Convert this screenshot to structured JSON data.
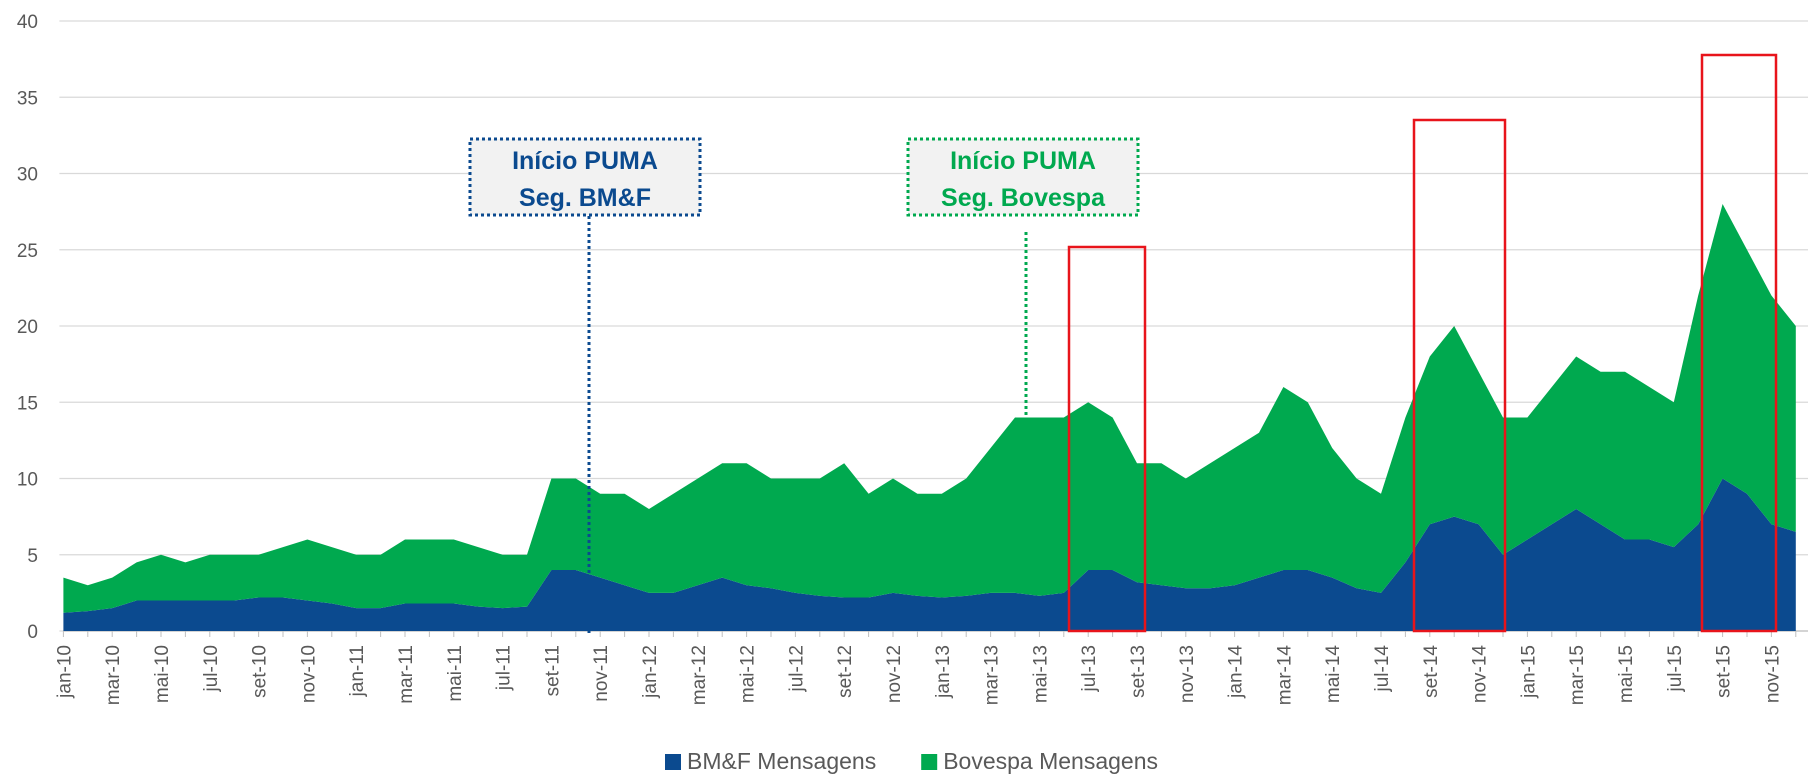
{
  "chart_data": {
    "type": "stacked_area",
    "categories": [
      "jan-10",
      null,
      "mar-10",
      null,
      "mai-10",
      null,
      "jul-10",
      null,
      "set-10",
      null,
      "nov-10",
      null,
      "jan-11",
      null,
      "mar-11",
      null,
      "mai-11",
      null,
      "jul-11",
      null,
      "set-11",
      null,
      "nov-11",
      null,
      "jan-12",
      null,
      "mar-12",
      null,
      "mai-12",
      null,
      "jul-12",
      null,
      "set-12",
      null,
      "nov-12",
      null,
      "jan-13",
      null,
      "mar-13",
      null,
      "mai-13",
      null,
      "jul-13",
      null,
      "set-13",
      null,
      "nov-13",
      null,
      "jan-14",
      null,
      "mar-14",
      null,
      "mai-14",
      null,
      "jul-14",
      null,
      "set-14",
      null,
      "nov-14",
      null,
      "jan-15",
      null,
      "mar-15",
      null,
      "mai-15",
      null,
      "jul-15",
      null,
      "set-15",
      null,
      "nov-15",
      null
    ],
    "series": [
      {
        "name": "BM&F Mensagens",
        "color": "#0b4a8f",
        "values": [
          1.2,
          1.3,
          1.5,
          2,
          2,
          2,
          2,
          2,
          2.2,
          2.2,
          2,
          1.8,
          1.5,
          1.5,
          1.8,
          1.8,
          1.8,
          1.6,
          1.5,
          1.6,
          4,
          4,
          3.5,
          3,
          2.5,
          2.5,
          3,
          3.5,
          3,
          2.8,
          2.5,
          2.3,
          2.2,
          2.2,
          2.5,
          2.3,
          2.2,
          2.3,
          2.5,
          2.5,
          2.3,
          2.5,
          4,
          4,
          3.2,
          3,
          2.8,
          2.8,
          3,
          3.5,
          4,
          4,
          3.5,
          2.8,
          2.5,
          4.5,
          7,
          7.5,
          7,
          5,
          6,
          7,
          8,
          7,
          6,
          6,
          5.5,
          7,
          10,
          9,
          7,
          6.5
        ]
      },
      {
        "name": "Bovespa Mensagens",
        "color": "#00a94f",
        "values": [
          2.3,
          1.7,
          2,
          2.5,
          3,
          2.5,
          3,
          3,
          2.8,
          3.3,
          4,
          3.7,
          3.5,
          3.5,
          4.2,
          4.2,
          4.2,
          3.9,
          3.5,
          3.4,
          6,
          6,
          5.5,
          6,
          5.5,
          6.5,
          7,
          7.5,
          8,
          7.2,
          7.5,
          7.7,
          8.8,
          6.8,
          7.5,
          6.7,
          6.8,
          7.7,
          9.5,
          11.5,
          11.7,
          11.5,
          11,
          10,
          7.8,
          8,
          7.2,
          8.2,
          9,
          9.5,
          12,
          11,
          8.5,
          7.2,
          6.5,
          9.5,
          11,
          12.5,
          10,
          9,
          8,
          9,
          10,
          10,
          11,
          10,
          9.5,
          15,
          18,
          16,
          15,
          13.5
        ]
      }
    ],
    "ylim": [
      0,
      40
    ],
    "yticks": [
      0,
      5,
      10,
      15,
      20,
      25,
      30,
      35,
      40
    ],
    "grid": true,
    "legend": "bottom",
    "annotations": [
      {
        "lines": [
          "Início PUMA",
          "Seg. BM&F"
        ],
        "color": "#0b4a8f"
      },
      {
        "lines": [
          "Início PUMA",
          "Seg. Bovespa"
        ],
        "color": "#00a94f"
      }
    ]
  }
}
